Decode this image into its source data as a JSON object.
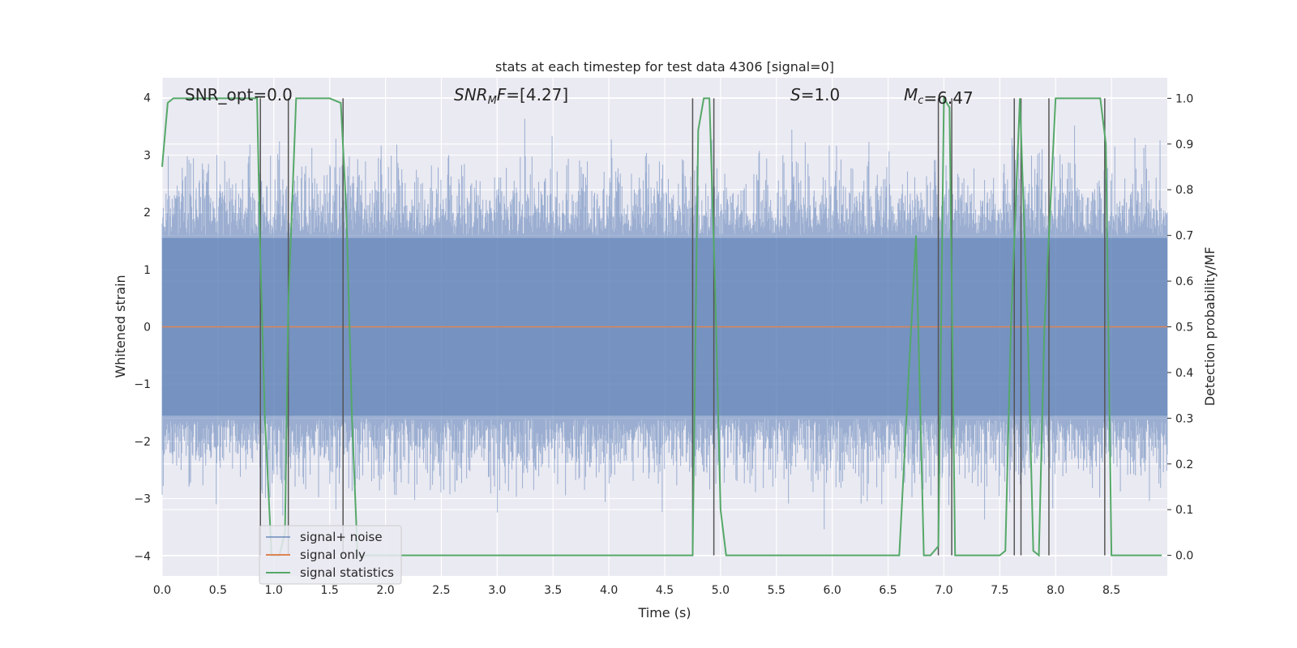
{
  "chart_data": {
    "type": "line",
    "title": "stats at each timestep for test data 4306 [signal=0]",
    "xlabel": "Time (s)",
    "ylabel": "Whitened strain",
    "y2label": "Detection probability/MF",
    "xlim": [
      0.0,
      9.0
    ],
    "ylim": [
      -4.35,
      4.35
    ],
    "y2lim": [
      -0.045,
      1.045
    ],
    "xticks": [
      "0.0",
      "0.5",
      "1.0",
      "1.5",
      "2.0",
      "2.5",
      "3.0",
      "3.5",
      "4.0",
      "4.5",
      "5.0",
      "5.5",
      "6.0",
      "6.5",
      "7.0",
      "7.5",
      "8.0",
      "8.5"
    ],
    "yticks": [
      "4",
      "3",
      "2",
      "1",
      "0",
      "−1",
      "−2",
      "−3",
      "−4"
    ],
    "y2ticks": [
      "1.0",
      "0.9",
      "0.8",
      "0.7",
      "0.6",
      "0.5",
      "0.4",
      "0.3",
      "0.2",
      "0.1",
      "0.0"
    ],
    "grid": true,
    "legend_position": "lower-left",
    "colors": {
      "background": "#eaeaf2",
      "grid": "#ffffff",
      "noise": "#4c72b0",
      "signal": "#dd8452",
      "statistics": "#55a868",
      "vlines": "#555555"
    },
    "annotations": [
      {
        "prefix": "SNR_opt",
        "sub": "",
        "value": "=0.0",
        "italic": false
      },
      {
        "prefix": "SNR",
        "sub": "M",
        "suffix": "F",
        "value": "=[4.27]",
        "italic": true
      },
      {
        "prefix": "S",
        "sub": "",
        "value": "=1.0",
        "italic": true
      },
      {
        "prefix": "M",
        "sub": "c",
        "value": "=6.47",
        "italic": true
      }
    ],
    "series": [
      {
        "name": "signal+ noise",
        "kind": "noise",
        "note_amplitude": 1.0,
        "x_range": [
          0.0,
          9.0
        ]
      },
      {
        "name": "signal only",
        "kind": "flat",
        "value": 0.0,
        "x_range": [
          0.0,
          9.0
        ]
      },
      {
        "name": "signal statistics",
        "kind": "line",
        "axis": "right",
        "x": [
          0.0,
          0.05,
          0.1,
          0.15,
          0.85,
          0.88,
          0.92,
          0.98,
          1.05,
          1.1,
          1.13,
          1.2,
          1.5,
          1.6,
          1.65,
          1.7,
          1.75,
          4.75,
          4.8,
          4.85,
          4.9,
          4.95,
          5.0,
          5.05,
          6.6,
          6.75,
          6.82,
          6.88,
          6.95,
          7.0,
          7.05,
          7.1,
          7.5,
          7.55,
          7.6,
          7.68,
          7.75,
          7.8,
          7.85,
          7.9,
          8.0,
          8.1,
          8.4,
          8.45,
          8.5,
          8.95
        ],
        "y": [
          0.85,
          0.99,
          1.0,
          1.0,
          1.0,
          0.65,
          0.3,
          0.0,
          0.0,
          0.05,
          0.55,
          1.0,
          1.0,
          0.99,
          0.75,
          0.3,
          0.0,
          0.0,
          0.93,
          1.0,
          1.0,
          0.6,
          0.1,
          0.0,
          0.0,
          0.7,
          0.0,
          0.0,
          0.02,
          1.0,
          0.98,
          0.0,
          0.0,
          0.01,
          0.5,
          1.0,
          0.5,
          0.01,
          0.0,
          0.5,
          1.0,
          1.0,
          1.0,
          0.9,
          0.0,
          0.0
        ]
      }
    ],
    "vlines_x": [
      0.88,
      1.13,
      1.62,
      4.75,
      4.94,
      6.95,
      7.07,
      7.63,
      7.69,
      7.94,
      8.44
    ]
  }
}
